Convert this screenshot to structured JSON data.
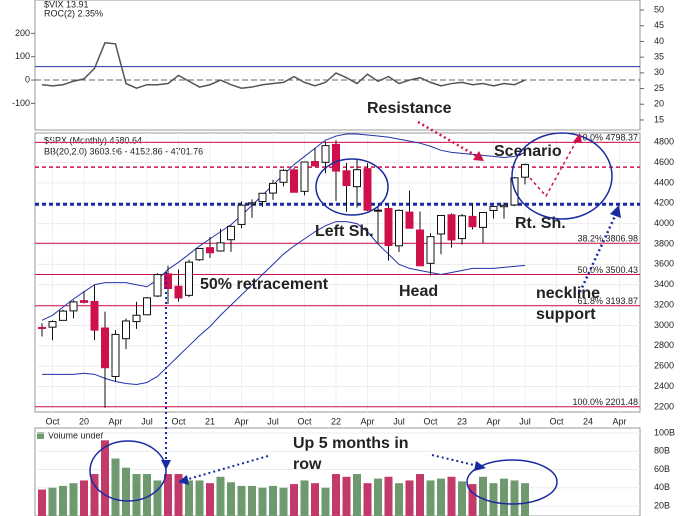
{
  "chart_data": [
    {
      "type": "line",
      "title": "$VIX 13.91",
      "subtitle": "ROC(2) 2.35%",
      "values": [
        -20,
        -25,
        -20,
        -5,
        5,
        50,
        160,
        155,
        -15,
        -35,
        -20,
        -20,
        -15,
        20,
        -5,
        -30,
        -20,
        0,
        -20,
        -35,
        -30,
        -20,
        -15,
        -10,
        15,
        -10,
        -25,
        -10,
        30,
        10,
        -15,
        25,
        -5,
        15,
        -15,
        0,
        10,
        -10,
        -25,
        -15,
        -10,
        -20,
        -15,
        -25,
        -15,
        -20,
        0
      ],
      "color": "#555555",
      "ylim": [
        -214,
        343
      ],
      "yticks": [
        200,
        100,
        0,
        -100
      ],
      "y2lim": [
        11.8,
        53.2
      ],
      "y2ticks": [
        15,
        20,
        25,
        30,
        35,
        40,
        45,
        50
      ],
      "y2_reference": 32
    },
    {
      "type": "candlestick",
      "title": "$SPX (Monthly) 4580.64",
      "subtitle": "BB(20,2.0) 3603.96 - 4152.86 - 4701.76",
      "categories": [
        null,
        "Oct",
        null,
        null,
        "20",
        null,
        null,
        "Apr",
        null,
        null,
        "Jul",
        null,
        null,
        "Oct",
        null,
        null,
        "21",
        null,
        null,
        "Apr",
        null,
        null,
        "Jul",
        null,
        null,
        "Oct",
        null,
        null,
        "22",
        null,
        null,
        "Apr",
        null,
        null,
        "Jul",
        null,
        null,
        "Oct",
        null,
        null,
        "23",
        null,
        null,
        "Apr",
        null,
        null,
        "Jul",
        null,
        null,
        "Oct",
        null,
        null,
        "24",
        null,
        null,
        "Apr",
        null,
        null
      ],
      "open": [
        2980,
        2983,
        3050,
        3143,
        3244,
        3236,
        2975,
        2499,
        2870,
        3038,
        3105,
        3289,
        3507,
        3385,
        3296,
        3645,
        3764,
        3731,
        3842,
        3992,
        4192,
        4217,
        4300,
        4406,
        4528,
        4317,
        4610,
        4602,
        4778,
        4519,
        4363,
        4540,
        4130,
        4149,
        3782,
        4113,
        3937,
        3610,
        3898,
        4087,
        3853,
        4071,
        3963,
        4129,
        4166,
        4183,
        4456,
        null,
        null,
        null,
        null,
        null,
        null,
        null,
        null,
        null,
        null,
        null
      ],
      "high": [
        3022,
        3050,
        3154,
        3248,
        3338,
        3394,
        3136,
        2954,
        3068,
        3233,
        3280,
        3514,
        3588,
        3550,
        3646,
        3760,
        3870,
        3950,
        3983,
        4218,
        4238,
        4302,
        4430,
        4538,
        4546,
        4608,
        4744,
        4808,
        4818,
        4595,
        4637,
        4593,
        4169,
        4178,
        4140,
        4325,
        4119,
        3906,
        4080,
        4101,
        4095,
        4195,
        4110,
        4170,
        4206,
        4458,
        4590,
        null,
        null,
        null,
        null,
        null,
        null,
        null,
        null,
        null,
        null,
        null
      ],
      "low": [
        2892,
        2855,
        3050,
        3070,
        3215,
        2855,
        2192,
        2448,
        2767,
        2966,
        3101,
        3280,
        3209,
        3234,
        3280,
        3634,
        3663,
        3725,
        3723,
        3955,
        4056,
        4165,
        4233,
        4367,
        4306,
        4278,
        4560,
        4495,
        4222,
        4115,
        4157,
        4124,
        3810,
        3637,
        3721,
        3955,
        3585,
        3492,
        3699,
        3764,
        3795,
        3944,
        3809,
        4049,
        4048,
        4172,
        4386,
        null,
        null,
        null,
        null,
        null,
        null,
        null,
        null,
        null,
        null,
        null
      ],
      "close": [
        2977,
        3038,
        3141,
        3231,
        3226,
        2954,
        2585,
        2912,
        3044,
        3100,
        3271,
        3500,
        3363,
        3270,
        3622,
        3756,
        3714,
        3811,
        3973,
        4181,
        4204,
        4298,
        4395,
        4523,
        4308,
        4605,
        4567,
        4766,
        4516,
        4374,
        4530,
        4132,
        4132,
        3785,
        4130,
        3955,
        3586,
        3872,
        4080,
        3840,
        4077,
        3970,
        4109,
        4169,
        4180,
        4450,
        4580,
        null,
        null,
        null,
        null,
        null,
        null,
        null,
        null,
        null,
        null,
        null
      ],
      "up_color": "#ffffff",
      "down_color": "#d0104a",
      "bands": {
        "color": "#2233aa",
        "upper": [
          3050,
          3100,
          3180,
          3260,
          3330,
          3400,
          3420,
          3420,
          3420,
          3400,
          3380,
          3450,
          3550,
          3620,
          3700,
          3780,
          3850,
          3920,
          3990,
          4080,
          4180,
          4280,
          4380,
          4480,
          4580,
          4660,
          4740,
          4820,
          4860,
          4880,
          4880,
          4870,
          4860,
          4850,
          4830,
          4810,
          4790,
          4760,
          4720,
          4700,
          4690,
          4680,
          4670,
          4660,
          4650,
          4660,
          4700,
          null,
          null,
          null,
          null,
          null,
          null,
          null,
          null,
          null,
          null,
          null
        ],
        "lower": [
          2520,
          2520,
          2520,
          2520,
          2530,
          2520,
          2480,
          2450,
          2430,
          2420,
          2440,
          2500,
          2600,
          2700,
          2800,
          2900,
          2990,
          3100,
          3200,
          3300,
          3400,
          3500,
          3600,
          3700,
          3780,
          3850,
          3920,
          3980,
          4020,
          4020,
          4000,
          3920,
          3800,
          3700,
          3600,
          3560,
          3540,
          3520,
          3500,
          3520,
          3540,
          3560,
          3560,
          3560,
          3570,
          3580,
          3590,
          null,
          null,
          null,
          null,
          null,
          null,
          null,
          null,
          null,
          null,
          null
        ]
      },
      "ylim": [
        2150,
        4890
      ],
      "yticks": [
        2200,
        2400,
        2600,
        2800,
        3000,
        3200,
        3400,
        3600,
        3800,
        4000,
        4200,
        4400,
        4600,
        4800
      ],
      "grid": true,
      "fib_levels": [
        {
          "label": "0.0%",
          "value": 4798.37
        },
        {
          "label": "38.2%",
          "value": 3806.98
        },
        {
          "label": "50.0%",
          "value": 3500.43
        },
        {
          "label": "61.8%",
          "value": 3193.87
        },
        {
          "label": "100.0%",
          "value": 2201.48
        }
      ],
      "fib_color": "#d0104a",
      "resistance": 4555,
      "neckline": 4190,
      "annotations": [
        "Resistance",
        "Scenario",
        "Left Sh.",
        "Rt. Sh.",
        "Head",
        "50% retracement",
        "neckline",
        "support",
        "Up 5 months in",
        "row"
      ]
    },
    {
      "type": "bar",
      "title": "Volume undef",
      "values": [
        38,
        40,
        42,
        45,
        48,
        55,
        92,
        72,
        62,
        55,
        55,
        48,
        55,
        55,
        48,
        48,
        45,
        52,
        46,
        42,
        42,
        40,
        42,
        40,
        44,
        48,
        45,
        40,
        55,
        52,
        55,
        45,
        50,
        52,
        45,
        48,
        55,
        48,
        50,
        52,
        47,
        44,
        52,
        45,
        50,
        48,
        45
      ],
      "up_color": "#6f9a6f",
      "down_color": "#c23a6a",
      "ylim": [
        9,
        105.5
      ],
      "yticks": [
        {
          "value": 100,
          "label": "100B"
        },
        {
          "value": 80,
          "label": "80B"
        },
        {
          "value": 60,
          "label": "60B"
        },
        {
          "value": 40,
          "label": "40B"
        },
        {
          "value": 20,
          "label": "20B"
        }
      ]
    }
  ]
}
